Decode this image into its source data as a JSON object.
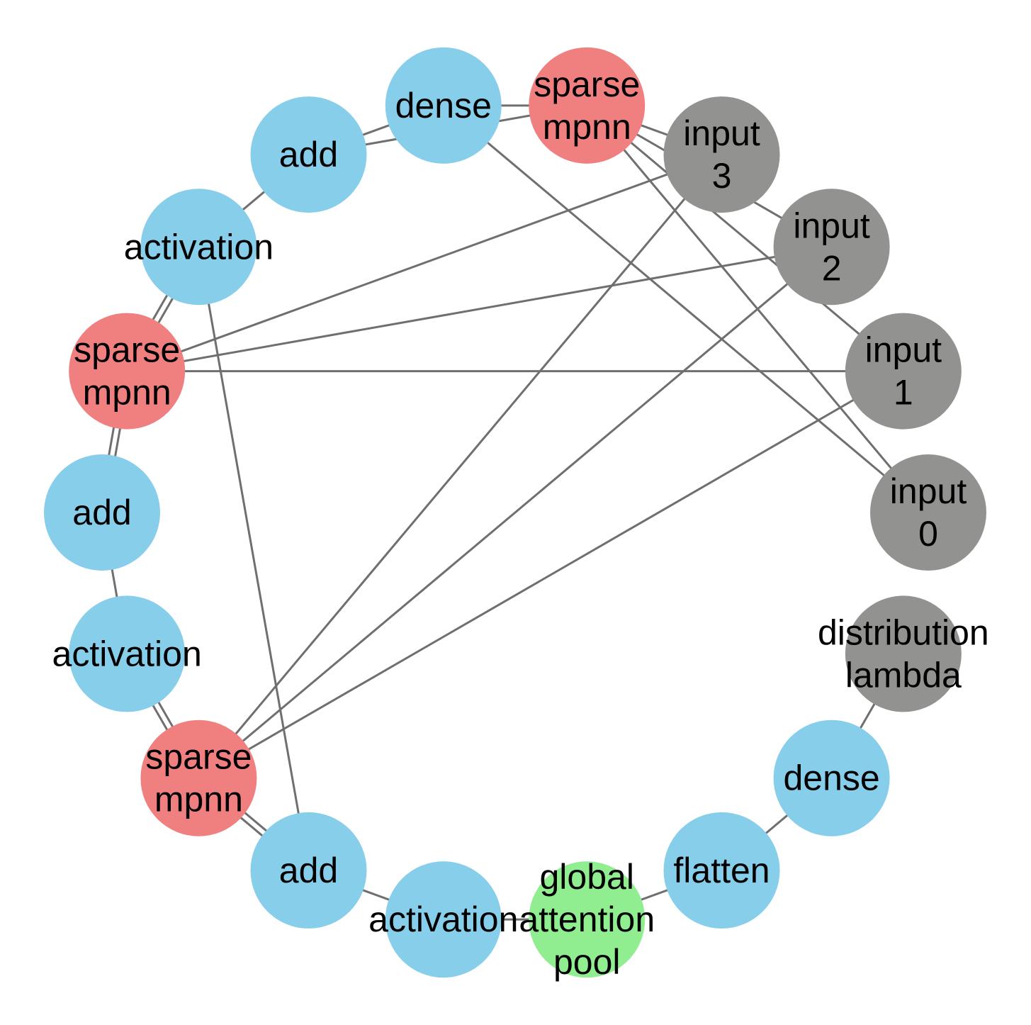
{
  "colors": {
    "layer": "#87ceeb",
    "sparse_mpnn": "#f08080",
    "input": "#929290",
    "pool": "#90ee90",
    "edge": "#6f6f6f"
  },
  "nodes": [
    {
      "id": "input_0",
      "lines": [
        "input",
        "0"
      ],
      "kind": "input"
    },
    {
      "id": "input_1",
      "lines": [
        "input",
        "1"
      ],
      "kind": "input"
    },
    {
      "id": "input_2",
      "lines": [
        "input",
        "2"
      ],
      "kind": "input"
    },
    {
      "id": "input_3",
      "lines": [
        "input",
        "3"
      ],
      "kind": "input"
    },
    {
      "id": "sparse_mpnn_1",
      "lines": [
        "sparse",
        "mpnn"
      ],
      "kind": "sparse_mpnn"
    },
    {
      "id": "dense_1",
      "lines": [
        "dense"
      ],
      "kind": "layer"
    },
    {
      "id": "add_1",
      "lines": [
        "add"
      ],
      "kind": "layer"
    },
    {
      "id": "activation_1",
      "lines": [
        "activation"
      ],
      "kind": "layer"
    },
    {
      "id": "sparse_mpnn_2",
      "lines": [
        "sparse",
        "mpnn"
      ],
      "kind": "sparse_mpnn"
    },
    {
      "id": "add_2",
      "lines": [
        "add"
      ],
      "kind": "layer"
    },
    {
      "id": "activation_2",
      "lines": [
        "activation"
      ],
      "kind": "layer"
    },
    {
      "id": "sparse_mpnn_3",
      "lines": [
        "sparse",
        "mpnn"
      ],
      "kind": "sparse_mpnn"
    },
    {
      "id": "add_3",
      "lines": [
        "add"
      ],
      "kind": "layer"
    },
    {
      "id": "activation_3",
      "lines": [
        "activation"
      ],
      "kind": "layer"
    },
    {
      "id": "global_attention_pool",
      "lines": [
        "global",
        "attention",
        "pool"
      ],
      "kind": "pool"
    },
    {
      "id": "flatten",
      "lines": [
        "flatten"
      ],
      "kind": "layer"
    },
    {
      "id": "dense_2",
      "lines": [
        "dense"
      ],
      "kind": "layer"
    },
    {
      "id": "distribution_lambda",
      "lines": [
        "distribution",
        "lambda"
      ],
      "kind": "input"
    }
  ],
  "edges": [
    [
      "input_0",
      "dense_1"
    ],
    [
      "input_0",
      "sparse_mpnn_1"
    ],
    [
      "input_1",
      "sparse_mpnn_1"
    ],
    [
      "input_2",
      "sparse_mpnn_1"
    ],
    [
      "input_3",
      "sparse_mpnn_1"
    ],
    [
      "input_1",
      "sparse_mpnn_2"
    ],
    [
      "input_2",
      "sparse_mpnn_2"
    ],
    [
      "input_3",
      "sparse_mpnn_2"
    ],
    [
      "input_1",
      "sparse_mpnn_3"
    ],
    [
      "input_2",
      "sparse_mpnn_3"
    ],
    [
      "input_3",
      "sparse_mpnn_3"
    ],
    [
      "sparse_mpnn_1",
      "dense_1"
    ],
    [
      "dense_1",
      "add_1"
    ],
    [
      "sparse_mpnn_1",
      "add_1"
    ],
    [
      "add_1",
      "activation_1"
    ],
    [
      "activation_1",
      "sparse_mpnn_2"
    ],
    [
      "activation_1",
      "sparse_mpnn_2"
    ],
    [
      "activation_1",
      "add_3"
    ],
    [
      "sparse_mpnn_2",
      "add_2"
    ],
    [
      "sparse_mpnn_2",
      "add_2"
    ],
    [
      "add_2",
      "activation_2"
    ],
    [
      "activation_2",
      "sparse_mpnn_3"
    ],
    [
      "activation_2",
      "sparse_mpnn_3"
    ],
    [
      "sparse_mpnn_3",
      "add_3"
    ],
    [
      "sparse_mpnn_3",
      "add_3"
    ],
    [
      "add_3",
      "activation_3"
    ],
    [
      "activation_3",
      "global_attention_pool"
    ],
    [
      "global_attention_pool",
      "flatten"
    ],
    [
      "flatten",
      "dense_2"
    ],
    [
      "dense_2",
      "distribution_lambda"
    ]
  ]
}
